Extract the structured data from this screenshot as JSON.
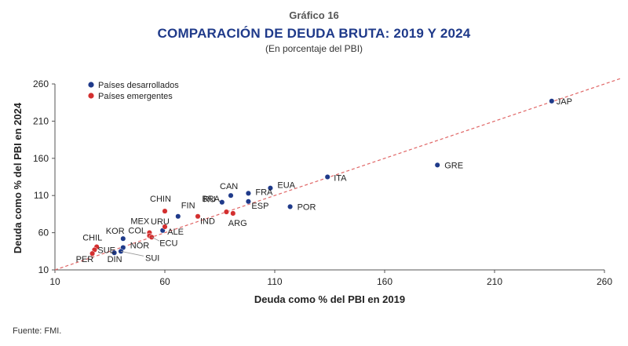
{
  "header": {
    "kicker": "Gráfico 16",
    "title": "COMPARACIÓN DE DEUDA BRUTA: 2019 Y 2024",
    "subtitle": "(En porcentaje del PBI)"
  },
  "footer": {
    "source": "Fuente: FMI."
  },
  "colors": {
    "developed": "#1f3a8a",
    "emerging": "#d32f2f",
    "reference_line": "#e06666"
  },
  "chart_data": {
    "type": "scatter",
    "xlabel": "Deuda como % del PBI en 2019",
    "ylabel": "Deuda como % del PBI en 2024",
    "xlim": [
      10,
      260
    ],
    "ylim": [
      10,
      260
    ],
    "xticks": [
      10,
      60,
      110,
      160,
      210,
      260
    ],
    "yticks": [
      10,
      60,
      110,
      160,
      210,
      260
    ],
    "reference_line": "y = x",
    "legend_position": "top-left",
    "series": [
      {
        "name": "Países desarrollados",
        "color": "#1f3a8a",
        "points": [
          {
            "label": "JAP",
            "x": 236,
            "y": 237
          },
          {
            "label": "GRE",
            "x": 184,
            "y": 151
          },
          {
            "label": "ITA",
            "x": 134,
            "y": 135
          },
          {
            "label": "EUA",
            "x": 108,
            "y": 120
          },
          {
            "label": "FRA",
            "x": 98,
            "y": 113
          },
          {
            "label": "CAN",
            "x": 90,
            "y": 110
          },
          {
            "label": "ESP",
            "x": 98,
            "y": 102
          },
          {
            "label": "RU",
            "x": 86,
            "y": 101
          },
          {
            "label": "POR",
            "x": 117,
            "y": 95
          },
          {
            "label": "FIN",
            "x": 66,
            "y": 82
          },
          {
            "label": "ALE",
            "x": 59,
            "y": 63
          },
          {
            "label": "KOR",
            "x": 41,
            "y": 52
          },
          {
            "label": "NOR",
            "x": 41,
            "y": 40
          },
          {
            "label": "SUI",
            "x": 40,
            "y": 35
          },
          {
            "label": "DIN",
            "x": 37,
            "y": 33
          }
        ]
      },
      {
        "name": "Países emergentes",
        "color": "#d32f2f",
        "points": [
          {
            "label": "CHIN",
            "x": 60,
            "y": 89
          },
          {
            "label": "BRA",
            "x": 88,
            "y": 88
          },
          {
            "label": "IND",
            "x": 75,
            "y": 82
          },
          {
            "label": "ARG",
            "x": 91,
            "y": 86
          },
          {
            "label": "URU",
            "x": 60,
            "y": 68
          },
          {
            "label": "MEX",
            "x": 53,
            "y": 60
          },
          {
            "label": "COL",
            "x": 53,
            "y": 56
          },
          {
            "label": "ECU",
            "x": 54,
            "y": 54
          },
          {
            "label": "CHIL",
            "x": 29,
            "y": 41
          },
          {
            "label": "SUE",
            "x": 28,
            "y": 37
          },
          {
            "label": "PER",
            "x": 27,
            "y": 32
          }
        ]
      }
    ]
  }
}
